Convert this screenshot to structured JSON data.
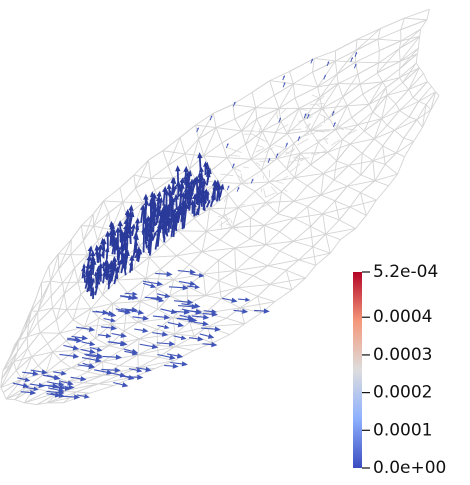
{
  "colorbar": {
    "range": [
      0,
      0.00052
    ],
    "ticks": [
      {
        "value": 0.00052,
        "label": "5.2e-04"
      },
      0.0004,
      0.0003,
      0.0002,
      0.0001,
      {
        "value": 0,
        "label": "0.0e+00"
      }
    ],
    "colors": [
      "#3b4cc0",
      "#8db0fe",
      "#dddddd",
      "#f4987a",
      "#b40426"
    ]
  }
}
